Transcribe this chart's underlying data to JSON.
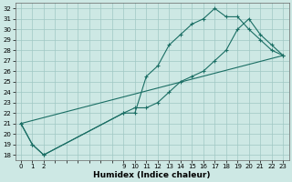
{
  "xlabel": "Humidex (Indice chaleur)",
  "bg_color": "#cde8e4",
  "grid_color": "#a0c8c4",
  "line_color": "#1a6e64",
  "xlim": [
    -0.5,
    23.5
  ],
  "ylim": [
    17.5,
    32.5
  ],
  "xticks_all": [
    0,
    1,
    2,
    3,
    4,
    5,
    6,
    7,
    8,
    9,
    10,
    11,
    12,
    13,
    14,
    15,
    16,
    17,
    18,
    19,
    20,
    21,
    22,
    23
  ],
  "xtick_labels": {
    "0": "0",
    "1": "1",
    "2": "2",
    "3": "",
    "4": "",
    "5": "",
    "6": "",
    "7": "",
    "8": "",
    "9": "9",
    "10": "10",
    "11": "11",
    "12": "12",
    "13": "13",
    "14": "14",
    "15": "15",
    "16": "16",
    "17": "17",
    "18": "18",
    "19": "19",
    "20": "20",
    "21": "21",
    "22": "22",
    "23": "23"
  },
  "yticks": [
    18,
    19,
    20,
    21,
    22,
    23,
    24,
    25,
    26,
    27,
    28,
    29,
    30,
    31,
    32
  ],
  "line1_x": [
    0,
    1,
    2,
    9,
    10,
    11,
    12,
    13,
    14,
    15,
    16,
    17,
    18,
    19,
    20,
    21,
    22,
    23
  ],
  "line1_y": [
    21,
    19,
    18,
    22,
    22,
    25.5,
    26.5,
    28.5,
    29.5,
    30.5,
    31,
    32,
    31.2,
    31.2,
    30,
    29,
    28,
    27.5
  ],
  "line2_x": [
    0,
    1,
    2,
    9,
    10,
    11,
    12,
    13,
    14,
    15,
    16,
    17,
    18,
    19,
    20,
    21,
    22,
    23
  ],
  "line2_y": [
    21,
    19,
    18,
    22,
    22.5,
    22.5,
    23,
    24,
    25,
    25.5,
    26,
    27,
    28,
    30,
    31,
    29.5,
    28.5,
    27.5
  ],
  "line3_x": [
    0,
    23
  ],
  "line3_y": [
    21,
    27.5
  ]
}
